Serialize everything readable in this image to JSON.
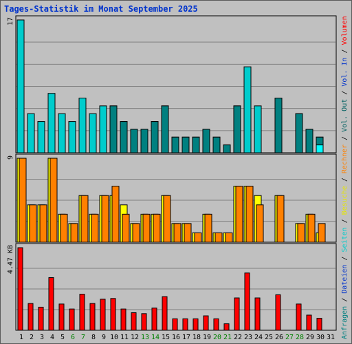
{
  "chart_data": {
    "type": "bar",
    "title": "Tages-Statistik im Monat September 2025",
    "days": [
      "1",
      "2",
      "3",
      "4",
      "5",
      "6",
      "7",
      "8",
      "9",
      "10",
      "11",
      "12",
      "13",
      "14",
      "15",
      "16",
      "17",
      "18",
      "19",
      "20",
      "21",
      "22",
      "23",
      "24",
      "25",
      "26",
      "27",
      "28",
      "29",
      "30",
      "31"
    ],
    "weekend_days": [
      "6",
      "7",
      "13",
      "14",
      "20",
      "21",
      "27",
      "28"
    ],
    "colors": {
      "hits": "#00cccc",
      "files": "#008080",
      "pages": "#00ffff",
      "visits": "#ffff00",
      "sites": "#ff8000",
      "volume": "#ff0000",
      "weekday_label": "#000000",
      "weekend_label": "#008000",
      "title": "#0033cc",
      "grid": "#808080",
      "background": "#c0c0c0"
    },
    "panels": [
      {
        "id": "requests",
        "ymax_label": "17",
        "ymax": 17,
        "series": [
          {
            "key": "hits",
            "values": [
              17,
              5,
              4,
              7.6,
              5,
              4,
              7,
              5,
              6,
              6,
              4,
              3,
              3,
              4,
              6,
              2,
              2,
              2,
              3,
              2,
              1,
              6,
              11,
              6,
              0,
              7,
              0,
              5,
              3,
              2,
              0
            ]
          },
          {
            "key": "files",
            "values": [
              0,
              0,
              0,
              0,
              0,
              0,
              0,
              0,
              0,
              6,
              4,
              3,
              3,
              4,
              6,
              2,
              2,
              2,
              3,
              2,
              1,
              6,
              0,
              0,
              0,
              7,
              0,
              5,
              3,
              2,
              0
            ]
          },
          {
            "key": "pages",
            "values": [
              0,
              0,
              0,
              0,
              0,
              0,
              0,
              0,
              0,
              0,
              0,
              0,
              0,
              0,
              0,
              0,
              0,
              0,
              0,
              0,
              0,
              0,
              0,
              0,
              0,
              0,
              0,
              0,
              0,
              1,
              0
            ]
          }
        ]
      },
      {
        "id": "visits",
        "ymax_label": "9",
        "ymax": 9,
        "series": [
          {
            "key": "visits",
            "values": [
              9,
              4,
              4,
              9,
              3,
              2,
              5,
              3,
              5,
              5,
              4,
              2,
              3,
              3,
              5,
              2,
              2,
              1,
              3,
              1,
              1,
              6,
              6,
              5,
              0,
              5,
              0,
              2,
              3,
              1,
              0
            ]
          },
          {
            "key": "sites",
            "values": [
              9,
              4,
              4,
              9,
              3,
              2,
              5,
              3,
              5,
              6,
              3,
              2,
              3,
              3,
              5,
              2,
              2,
              1,
              3,
              1,
              1,
              6,
              6,
              4,
              0,
              5,
              0,
              2,
              3,
              2,
              0
            ]
          }
        ]
      },
      {
        "id": "volume",
        "ymax_label": "4.47 KB",
        "ymax": 4.47,
        "series": [
          {
            "key": "volume",
            "values": [
              4.47,
              1.45,
              1.25,
              2.85,
              1.42,
              1.15,
              1.95,
              1.45,
              1.68,
              1.72,
              1.15,
              0.95,
              0.9,
              1.2,
              1.82,
              0.62,
              0.62,
              0.62,
              0.78,
              0.62,
              0.35,
              1.75,
              3.1,
              1.75,
              0,
              1.92,
              0,
              1.42,
              0.82,
              0.65,
              0
            ]
          }
        ]
      }
    ],
    "legend_right": [
      {
        "text": "Anfragen",
        "color": "#008080",
        "panel": "requests"
      },
      {
        "text": " / ",
        "color": "#000000",
        "panel": "requests"
      },
      {
        "text": "Dateien",
        "color": "#0033cc",
        "panel": "requests"
      },
      {
        "text": " / ",
        "color": "#000000",
        "panel": "requests"
      },
      {
        "text": "Seiten",
        "color": "#00cccc",
        "panel": "requests"
      },
      {
        "text": " / ",
        "color": "#000000",
        "panel": "visits"
      },
      {
        "text": "Besuche",
        "color": "#e6e600",
        "panel": "visits"
      },
      {
        "text": " / ",
        "color": "#000000",
        "panel": "visits"
      },
      {
        "text": "Rechner",
        "color": "#ff8000",
        "panel": "visits"
      },
      {
        "text": " / ",
        "color": "#000000",
        "panel": "visits"
      },
      {
        "text": "Vol. Out",
        "color": "#006060",
        "panel": "visits"
      },
      {
        "text": " / ",
        "color": "#000000",
        "panel": "volume"
      },
      {
        "text": "Vol. In",
        "color": "#0033cc",
        "panel": "volume"
      },
      {
        "text": " / ",
        "color": "#000000",
        "panel": "volume"
      },
      {
        "text": "Volumen",
        "color": "#ff0000",
        "panel": "volume"
      }
    ]
  }
}
